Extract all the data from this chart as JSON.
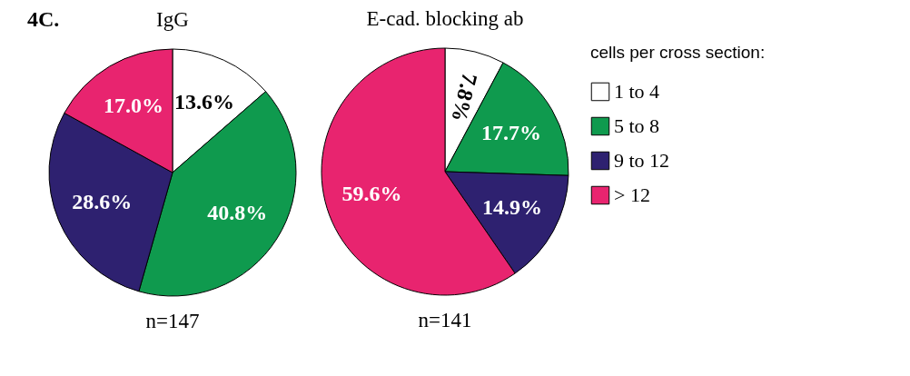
{
  "chart_data": [
    {
      "type": "pie",
      "title": "IgG",
      "categories": [
        null,
        null,
        null,
        null
      ],
      "values": [
        13.6,
        40.8,
        28.6,
        17.0
      ],
      "colors": [
        "#ffffff",
        "#0f9a4e",
        "#2e2170",
        "#e8246f"
      ],
      "value_labels": [
        "13.6%",
        "40.8%",
        "28.6%",
        "17.0%"
      ],
      "legend": false,
      "annotations": [
        "4C.",
        "n=147"
      ]
    },
    {
      "type": "pie",
      "title": "E-cad. blocking ab",
      "categories": [
        "1 to 4",
        "5 to 8",
        "9 to 12",
        "> 12"
      ],
      "values": [
        7.8,
        17.7,
        14.9,
        59.6
      ],
      "colors": [
        "#ffffff",
        "#0f9a4e",
        "#2e2170",
        "#e8246f"
      ],
      "value_labels": [
        "7.8%",
        "17.7%",
        "14.9%",
        "59.6%"
      ],
      "legend": "right",
      "legend_title": "cells per cross section:",
      "annotations": [
        "n=141"
      ]
    }
  ]
}
